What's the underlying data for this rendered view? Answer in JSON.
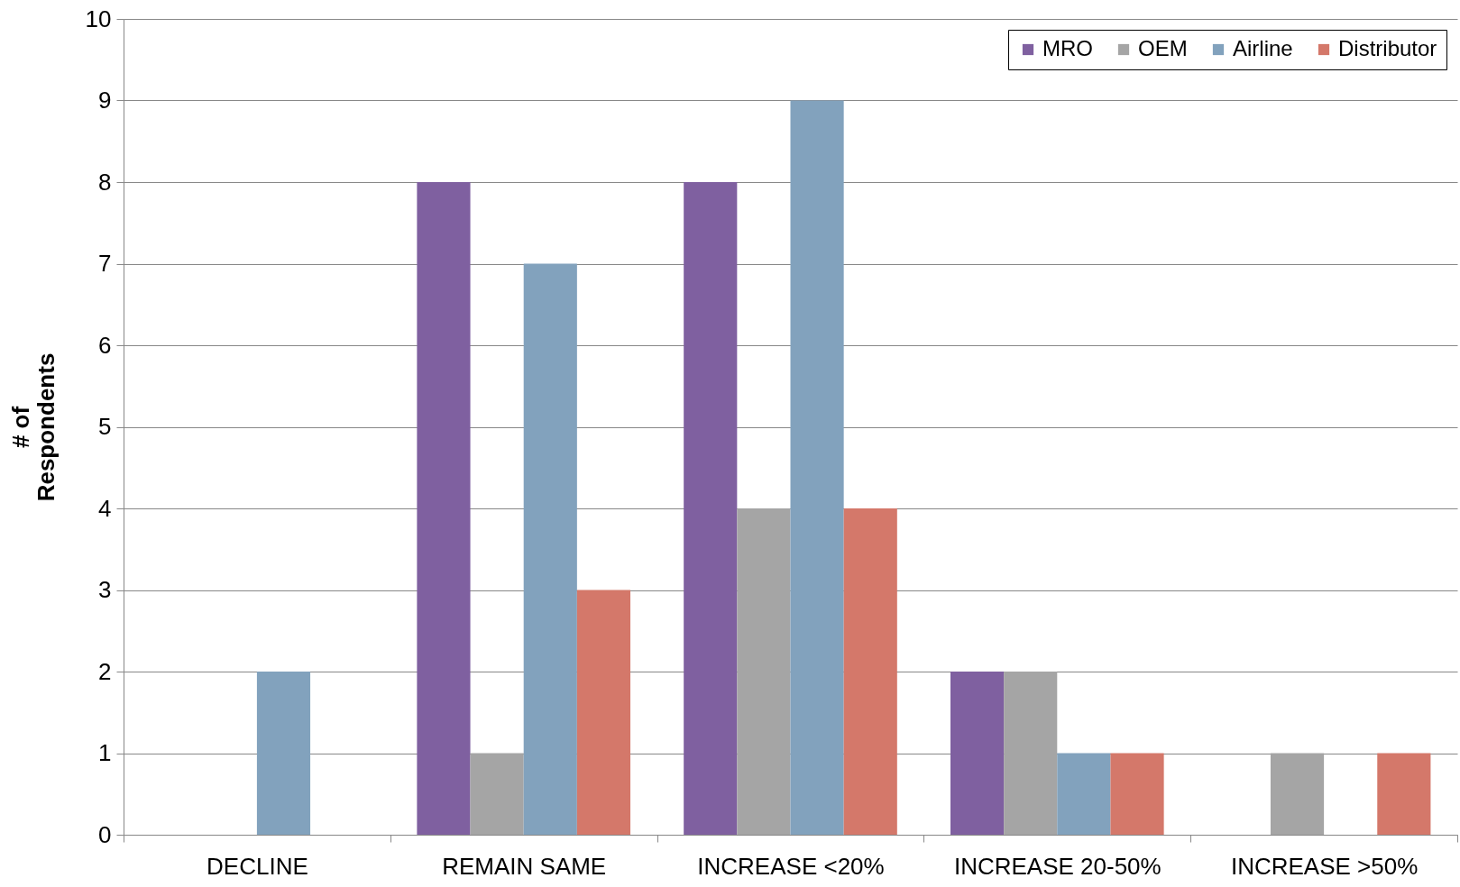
{
  "chart_data": {
    "type": "bar",
    "ylabel": "# of\nRespondents",
    "categories": [
      "DECLINE",
      "REMAIN SAME",
      "INCREASE <20%",
      "INCREASE 20-50%",
      "INCREASE >50%"
    ],
    "series": [
      {
        "name": "MRO",
        "color": "#7f60a0",
        "values": [
          0,
          8,
          8,
          2,
          0
        ]
      },
      {
        "name": "OEM",
        "color": "#a5a5a5",
        "values": [
          0,
          1,
          4,
          2,
          1
        ]
      },
      {
        "name": "Airline",
        "color": "#82a2bd",
        "values": [
          2,
          7,
          9,
          1,
          0
        ]
      },
      {
        "name": "Distributor",
        "color": "#d4786a",
        "values": [
          0,
          3,
          4,
          1,
          1
        ]
      }
    ],
    "ylim": [
      0,
      10
    ],
    "yticks": [
      0,
      1,
      2,
      3,
      4,
      5,
      6,
      7,
      8,
      9,
      10
    ],
    "grid": "y",
    "legend": "top right"
  }
}
